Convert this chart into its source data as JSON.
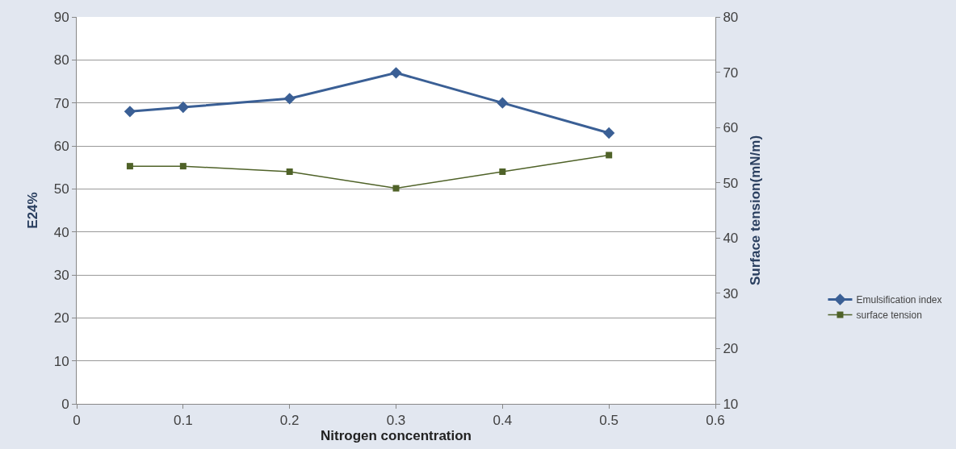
{
  "chart_data": {
    "type": "line",
    "x": [
      0.05,
      0.1,
      0.2,
      0.3,
      0.4,
      0.5
    ],
    "series": [
      {
        "name": "Emulsification index",
        "color": "#3a5f95",
        "values": [
          68,
          69,
          71,
          77,
          70,
          63
        ],
        "marker": "diamond"
      },
      {
        "name": "surface tension",
        "color": "#4f6228",
        "values": [
          53,
          53,
          52,
          49,
          52,
          55
        ],
        "marker": "square",
        "axis": "y2"
      }
    ],
    "xlabel": "Nitrogen concentration",
    "ylabel": "E24%",
    "y2label": "Surface tension(mN/m)",
    "xlim": [
      0,
      0.6
    ],
    "xticks": [
      0,
      0.1,
      0.2,
      0.3,
      0.4,
      0.5,
      0.6
    ],
    "ylim": [
      0,
      90
    ],
    "yticks": [
      0,
      10,
      20,
      30,
      40,
      50,
      60,
      70,
      80,
      90
    ],
    "y2lim": [
      10,
      80
    ],
    "y2ticks": [
      10,
      20,
      30,
      40,
      50,
      60,
      70,
      80
    ],
    "grid": "y",
    "legend": "right",
    "line_style": "solid"
  }
}
